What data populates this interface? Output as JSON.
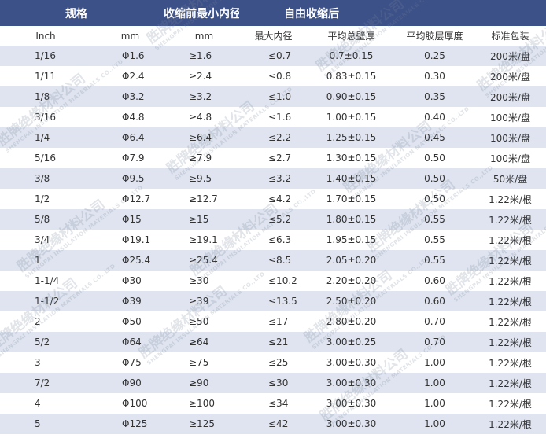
{
  "header": {
    "spec": "规格",
    "before_shrink": "收缩前最小内径",
    "after_shrink": "自由收缩后"
  },
  "subheader": [
    "Inch",
    "mm",
    "mm",
    "最大内径",
    "平均总壁厚",
    "平均胶层厚度",
    "标准包装"
  ],
  "rows": [
    [
      "1/16",
      "Φ1.6",
      "≥1.6",
      "≤0.7",
      "0.7±0.15",
      "0.25",
      "200米/盘"
    ],
    [
      "1/11",
      "Φ2.4",
      "≥2.4",
      "≤0.8",
      "0.83±0.15",
      "0.30",
      "200米/盘"
    ],
    [
      "1/8",
      "Φ3.2",
      "≥3.2",
      "≤1.0",
      "0.90±0.15",
      "0.35",
      "200米/盘"
    ],
    [
      "3/16",
      "Φ4.8",
      "≥4.8",
      "≤1.6",
      "1.00±0.15",
      "0.40",
      "100米/盘"
    ],
    [
      "1/4",
      "Φ6.4",
      "≥6.4",
      "≤2.2",
      "1.25±0.15",
      "0.45",
      "100米/盘"
    ],
    [
      "5/16",
      "Φ7.9",
      "≥7.9",
      "≤2.7",
      "1.30±0.15",
      "0.50",
      "100米/盘"
    ],
    [
      "3/8",
      "Φ9.5",
      "≥9.5",
      "≤3.2",
      "1.40±0.15",
      "0.50",
      "50米/盘"
    ],
    [
      "1/2",
      "Φ12.7",
      "≥12.7",
      "≤4.2",
      "1.70±0.15",
      "0.50",
      "1.22米/根"
    ],
    [
      "5/8",
      "Φ15",
      "≥15",
      "≤5.2",
      "1.80±0.15",
      "0.55",
      "1.22米/根"
    ],
    [
      "3/4",
      "Φ19.1",
      "≥19.1",
      "≤6.3",
      "1.95±0.15",
      "0.55",
      "1.22米/根"
    ],
    [
      "1",
      "Φ25.4",
      "≥25.4",
      "≤8.5",
      "2.05±0.20",
      "0.55",
      "1.22米/根"
    ],
    [
      "1-1/4",
      "Φ30",
      "≥30",
      "≤10.2",
      "2.20±0.20",
      "0.60",
      "1.22米/根"
    ],
    [
      "1-1/2",
      "Φ39",
      "≥39",
      "≤13.5",
      "2.50±0.20",
      "0.60",
      "1.22米/根"
    ],
    [
      "2",
      "Φ50",
      "≥50",
      "≤17",
      "2.80±0.20",
      "0.70",
      "1.22米/根"
    ],
    [
      "5/2",
      "Φ64",
      "≥64",
      "≤21",
      "3.00±0.25",
      "0.70",
      "1.22米/根"
    ],
    [
      "3",
      "Φ75",
      "≥75",
      "≤25",
      "3.00±0.30",
      "1.00",
      "1.22米/根"
    ],
    [
      "7/2",
      "Φ90",
      "≥90",
      "≤30",
      "3.00±0.30",
      "1.00",
      "1.22米/根"
    ],
    [
      "4",
      "Φ100",
      "≥100",
      "≤34",
      "3.00±0.30",
      "1.00",
      "1.22米/根"
    ],
    [
      "5",
      "Φ125",
      "≥125",
      "≤42",
      "3.00±0.30",
      "1.00",
      "1.22米/根"
    ]
  ],
  "watermark": {
    "text": "胜牌绝缘材料公司",
    "subtext": "SHENGPAI INSULATION MATERIALS CO.,LTD"
  },
  "colors": {
    "header_bg": "#3d5189",
    "stripe_bg": "#dfe4f0",
    "text": "#333333"
  }
}
